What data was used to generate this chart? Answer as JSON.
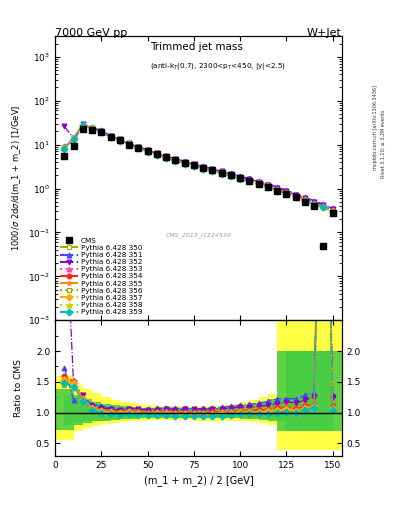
{
  "title_top": "7000 GeV pp",
  "title_right": "W+Jet",
  "plot_title": "Trimmed jet mass",
  "plot_subtitle": "(anti-k_{T}(0.7), 2300<p_{T}<450, |y|<2.5)",
  "xlabel": "(m_1 + m_2) / 2 [GeV]",
  "ylabel_main": "1000/\\u03c3 2d\\u03c3/d(m_1 + m_2) [1/GeV]",
  "ylabel_ratio": "Ratio to CMS",
  "watermark": "CMS_2013_I1224539",
  "rivet_text": "Rivet 3.1.10; ≥ 3.2M events",
  "inspire_text": "[arXiv:1306.3436]",
  "mcplots_text": "mcplots.cern.ch",
  "x_bins": [
    5,
    10,
    15,
    20,
    25,
    30,
    35,
    40,
    45,
    50,
    55,
    60,
    65,
    70,
    75,
    80,
    85,
    90,
    95,
    100,
    105,
    110,
    115,
    120,
    125,
    130,
    135,
    140,
    145,
    150
  ],
  "cms_y": [
    5.5,
    9.5,
    23.0,
    22.0,
    19.0,
    15.0,
    12.5,
    10.0,
    8.5,
    7.2,
    6.0,
    5.1,
    4.5,
    3.9,
    3.4,
    3.0,
    2.6,
    2.3,
    2.0,
    1.7,
    1.5,
    1.3,
    1.1,
    0.9,
    0.75,
    0.63,
    0.5,
    0.4,
    0.05,
    0.28
  ],
  "py350_y": [
    8.0,
    14.0,
    28.0,
    24.0,
    20.0,
    15.5,
    12.8,
    10.5,
    8.8,
    7.4,
    6.2,
    5.3,
    4.6,
    4.0,
    3.5,
    3.1,
    2.7,
    2.4,
    2.1,
    1.8,
    1.6,
    1.4,
    1.2,
    1.0,
    0.85,
    0.7,
    0.58,
    0.48,
    0.4,
    0.33
  ],
  "py351_y": [
    9.5,
    11.5,
    29.0,
    25.0,
    21.0,
    16.0,
    13.0,
    10.8,
    9.0,
    7.6,
    6.4,
    5.5,
    4.8,
    4.2,
    3.6,
    3.2,
    2.8,
    2.5,
    2.2,
    1.9,
    1.7,
    1.5,
    1.3,
    1.1,
    0.92,
    0.77,
    0.64,
    0.53,
    0.44,
    0.36
  ],
  "py352_y": [
    26.0,
    14.0,
    29.5,
    24.5,
    20.5,
    15.8,
    13.1,
    10.6,
    9.0,
    7.5,
    6.3,
    5.4,
    4.7,
    4.1,
    3.6,
    3.15,
    2.75,
    2.45,
    2.15,
    1.85,
    1.63,
    1.43,
    1.23,
    1.03,
    0.88,
    0.73,
    0.6,
    0.5,
    0.43,
    0.35
  ],
  "py353_y": [
    8.5,
    14.5,
    28.5,
    24.0,
    19.8,
    15.4,
    12.7,
    10.4,
    8.7,
    7.3,
    6.1,
    5.2,
    4.55,
    3.95,
    3.45,
    3.05,
    2.65,
    2.35,
    2.05,
    1.78,
    1.57,
    1.37,
    1.17,
    0.98,
    0.83,
    0.68,
    0.56,
    0.46,
    0.4,
    0.32
  ],
  "py354_y": [
    8.8,
    14.2,
    28.2,
    23.8,
    19.6,
    15.3,
    12.6,
    10.3,
    8.6,
    7.2,
    6.05,
    5.15,
    4.5,
    3.9,
    3.4,
    3.0,
    2.62,
    2.32,
    2.02,
    1.75,
    1.55,
    1.35,
    1.15,
    0.96,
    0.81,
    0.67,
    0.55,
    0.45,
    0.39,
    0.31
  ],
  "py355_y": [
    8.6,
    14.1,
    28.1,
    23.7,
    19.5,
    15.2,
    12.5,
    10.2,
    8.5,
    7.15,
    6.0,
    5.1,
    4.45,
    3.86,
    3.37,
    2.97,
    2.58,
    2.29,
    1.99,
    1.72,
    1.52,
    1.32,
    1.13,
    0.94,
    0.8,
    0.66,
    0.54,
    0.44,
    0.38,
    0.3
  ],
  "py356_y": [
    8.3,
    13.8,
    27.8,
    23.4,
    19.2,
    14.9,
    12.3,
    10.0,
    8.35,
    7.0,
    5.88,
    5.0,
    4.38,
    3.79,
    3.3,
    2.91,
    2.53,
    2.24,
    1.95,
    1.68,
    1.49,
    1.29,
    1.1,
    0.92,
    0.78,
    0.64,
    0.53,
    0.43,
    0.37,
    0.29
  ],
  "py357_y": [
    8.4,
    14.0,
    28.0,
    23.6,
    19.4,
    15.1,
    12.4,
    10.1,
    8.4,
    7.05,
    5.92,
    5.05,
    4.42,
    3.83,
    3.33,
    2.94,
    2.56,
    2.27,
    1.98,
    1.71,
    1.51,
    1.31,
    1.12,
    0.94,
    0.79,
    0.65,
    0.54,
    0.44,
    0.38,
    0.3
  ],
  "py358_y": [
    8.2,
    13.7,
    27.7,
    23.3,
    19.1,
    14.8,
    12.2,
    9.9,
    8.25,
    6.92,
    5.8,
    4.94,
    4.32,
    3.74,
    3.26,
    2.87,
    2.5,
    2.21,
    1.93,
    1.66,
    1.47,
    1.27,
    1.08,
    0.91,
    0.77,
    0.63,
    0.52,
    0.43,
    0.37,
    0.29
  ],
  "py359_y": [
    8.1,
    13.5,
    27.5,
    23.1,
    18.9,
    14.7,
    12.1,
    9.8,
    8.2,
    6.88,
    5.76,
    4.9,
    4.28,
    3.71,
    3.23,
    2.85,
    2.47,
    2.19,
    1.91,
    1.65,
    1.46,
    1.26,
    1.07,
    0.9,
    0.76,
    0.63,
    0.52,
    0.43,
    0.37,
    0.29
  ],
  "ratio_band_yellow_lo": [
    0.55,
    0.7,
    0.75,
    0.79,
    0.81,
    0.83,
    0.85,
    0.86,
    0.87,
    0.88,
    0.88,
    0.88,
    0.88,
    0.88,
    0.88,
    0.87,
    0.87,
    0.87,
    0.87,
    0.87,
    0.86,
    0.85,
    0.83,
    0.8,
    0.4,
    0.4,
    0.4,
    0.4,
    0.4,
    0.4
  ],
  "ratio_band_yellow_hi": [
    1.6,
    1.45,
    1.38,
    1.32,
    1.25,
    1.2,
    1.17,
    1.15,
    1.13,
    1.12,
    1.11,
    1.1,
    1.1,
    1.09,
    1.09,
    1.1,
    1.1,
    1.11,
    1.12,
    1.14,
    1.17,
    1.2,
    1.25,
    1.3,
    3.0,
    3.0,
    3.0,
    3.0,
    3.0,
    3.0
  ],
  "ratio_band_green_lo": [
    0.72,
    0.8,
    0.83,
    0.86,
    0.87,
    0.88,
    0.89,
    0.9,
    0.91,
    0.91,
    0.91,
    0.91,
    0.92,
    0.92,
    0.92,
    0.92,
    0.92,
    0.92,
    0.92,
    0.91,
    0.9,
    0.89,
    0.88,
    0.87,
    0.7,
    0.7,
    0.7,
    0.7,
    0.7,
    0.7
  ],
  "ratio_band_green_hi": [
    1.38,
    1.28,
    1.22,
    1.18,
    1.14,
    1.12,
    1.1,
    1.09,
    1.08,
    1.07,
    1.07,
    1.07,
    1.07,
    1.07,
    1.07,
    1.07,
    1.08,
    1.08,
    1.09,
    1.1,
    1.12,
    1.15,
    1.18,
    1.22,
    2.0,
    2.0,
    2.0,
    2.0,
    2.0,
    2.0
  ],
  "colors": {
    "py350": "#aaaa00",
    "py351": "#4444ff",
    "py352": "#8800cc",
    "py353": "#ff44aa",
    "py354": "#ff2222",
    "py355": "#ff8800",
    "py356": "#88aa00",
    "py357": "#ffaa00",
    "py358": "#cccc00",
    "py359": "#00bbbb"
  },
  "linestyles": {
    "py350": "--",
    "py351": "-.",
    "py352": "-.",
    "py353": ":",
    "py354": "--",
    "py355": "--",
    "py356": ":",
    "py357": "-.",
    "py358": ":",
    "py359": "-."
  },
  "markers": {
    "py350": "s",
    "py351": "^",
    "py352": "v",
    "py353": "^",
    "py354": "o",
    "py355": "*",
    "py356": "s",
    "py357": "D",
    "py358": "^",
    "py359": "D"
  },
  "ylim_main": [
    0.001,
    3000
  ],
  "ylim_ratio": [
    0.3,
    2.5
  ],
  "xlim": [
    0,
    155
  ]
}
